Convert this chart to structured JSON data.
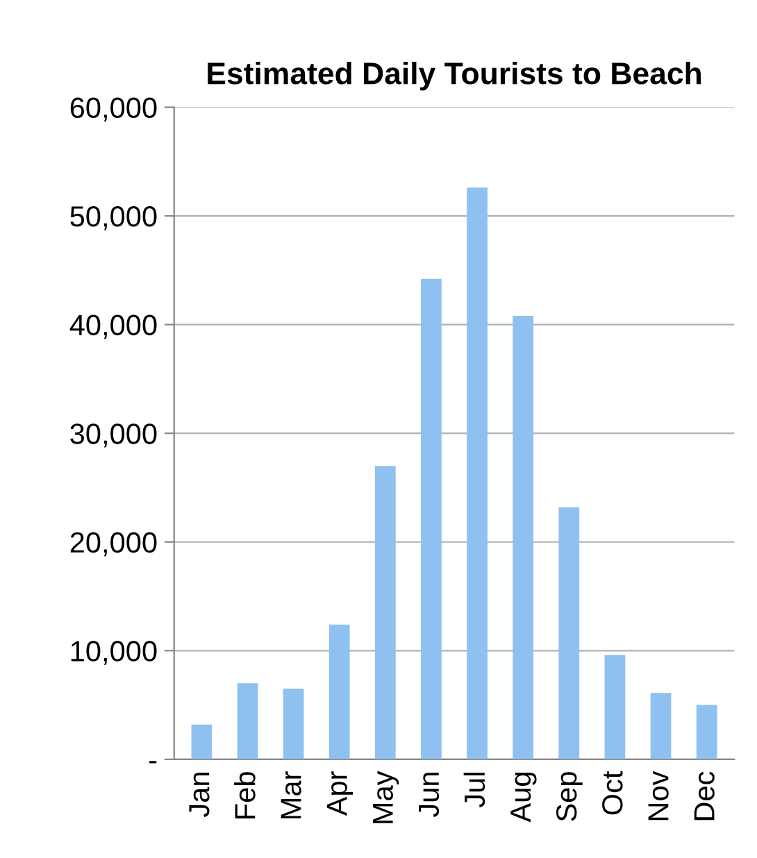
{
  "chart_data": {
    "type": "bar",
    "title": "Estimated Daily Tourists to Beach",
    "categories": [
      "Jan",
      "Feb",
      "Mar",
      "Apr",
      "May",
      "Jun",
      "Jul",
      "Aug",
      "Sep",
      "Oct",
      "Nov",
      "Dec"
    ],
    "values": [
      3200,
      7000,
      6500,
      12400,
      27000,
      44200,
      52600,
      40800,
      23200,
      9600,
      6100,
      5000
    ],
    "color": "#8fc1f0",
    "ylim": [
      0,
      60000
    ],
    "yticks": [
      {
        "value": 0,
        "label": "-"
      },
      {
        "value": 10000,
        "label": "10,000"
      },
      {
        "value": 20000,
        "label": "20,000"
      },
      {
        "value": 30000,
        "label": "30,000"
      },
      {
        "value": 40000,
        "label": "40,000"
      },
      {
        "value": 50000,
        "label": "50,000"
      },
      {
        "value": 60000,
        "label": "60,000"
      }
    ],
    "grid": "y"
  }
}
